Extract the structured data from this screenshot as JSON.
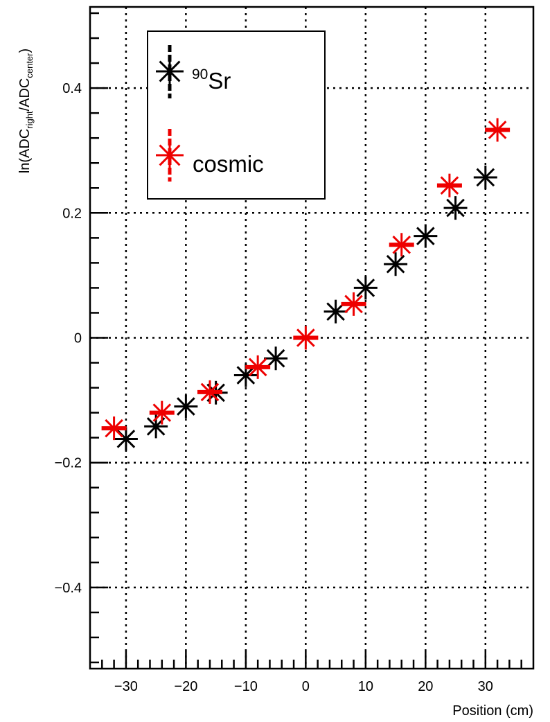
{
  "chart_data": {
    "type": "scatter",
    "title": "",
    "xlabel": "Position (cm)",
    "ylabel": {
      "main": "ln(ADC",
      "sub1": "right",
      "mid": "/ADC",
      "sub2": "center",
      "end": ")"
    },
    "xlim": [
      -36,
      38
    ],
    "ylim": [
      -0.53,
      0.53
    ],
    "x_ticks": [
      {
        "value": -30,
        "label": "−30"
      },
      {
        "value": -20,
        "label": "−20"
      },
      {
        "value": -10,
        "label": "−10"
      },
      {
        "value": 0,
        "label": "0"
      },
      {
        "value": 10,
        "label": "10"
      },
      {
        "value": 20,
        "label": "20"
      },
      {
        "value": 30,
        "label": "30"
      }
    ],
    "y_ticks": [
      {
        "value": -0.4,
        "label": "−0.4"
      },
      {
        "value": -0.2,
        "label": "−0.2"
      },
      {
        "value": 0,
        "label": "0"
      },
      {
        "value": 0.2,
        "label": "0.2"
      },
      {
        "value": 0.4,
        "label": "0.4"
      }
    ],
    "grid": true,
    "legend": {
      "position": "top-left",
      "entries": [
        {
          "series": 0,
          "sup": "90",
          "text": "Sr"
        },
        {
          "series": 1,
          "sup": "",
          "text": "cosmic"
        }
      ]
    },
    "series": [
      {
        "color": "#000000",
        "marker": "star",
        "x": [
          -30,
          -25,
          -20,
          -15,
          -10,
          -5,
          5,
          10,
          15,
          20,
          25,
          30
        ],
        "y": [
          -0.162,
          -0.142,
          -0.11,
          -0.088,
          -0.06,
          -0.033,
          0.042,
          0.08,
          0.118,
          0.163,
          0.208,
          0.257
        ]
      },
      {
        "color": "#ee0000",
        "marker": "star",
        "x": [
          -32,
          -24,
          -16,
          -8,
          0,
          8,
          16,
          24,
          32
        ],
        "y": [
          -0.145,
          -0.12,
          -0.087,
          -0.047,
          0.0,
          0.054,
          0.149,
          0.244,
          0.333
        ]
      }
    ]
  }
}
